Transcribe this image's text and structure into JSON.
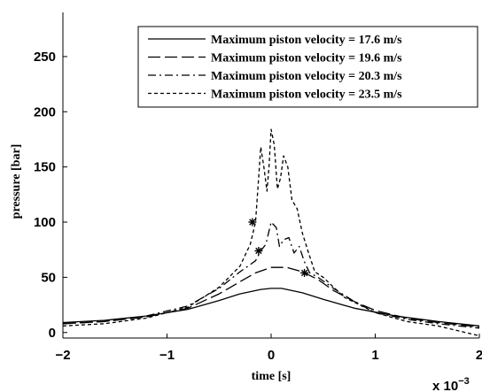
{
  "chart_data": {
    "type": "line",
    "xlabel": "time [s]",
    "ylabel": "pressure [bar]",
    "x_multiplier_label": "x 10",
    "x_multiplier_exponent": "−3",
    "xlim": [
      -2,
      2
    ],
    "ylim": [
      -5,
      290
    ],
    "xticks": [
      -2,
      -1,
      0,
      1,
      2
    ],
    "yticks": [
      0,
      50,
      100,
      150,
      200,
      250
    ],
    "grid": false,
    "legend_position": "top-right",
    "series": [
      {
        "name": "Maximum piston velocity = 17.6 m/s",
        "dash": "solid",
        "points": [
          [
            -2.0,
            9
          ],
          [
            -1.6,
            11
          ],
          [
            -1.2,
            15
          ],
          [
            -0.8,
            21
          ],
          [
            -0.5,
            29
          ],
          [
            -0.3,
            35
          ],
          [
            -0.1,
            39
          ],
          [
            0.0,
            40
          ],
          [
            0.1,
            40
          ],
          [
            0.3,
            36
          ],
          [
            0.5,
            30
          ],
          [
            0.8,
            22
          ],
          [
            1.2,
            15
          ],
          [
            1.6,
            10
          ],
          [
            2.0,
            6
          ]
        ]
      },
      {
        "name": "Maximum piston velocity = 19.6 m/s",
        "dash": "long-dash",
        "points": [
          [
            -2.0,
            8
          ],
          [
            -1.6,
            10
          ],
          [
            -1.2,
            14
          ],
          [
            -0.8,
            22
          ],
          [
            -0.5,
            35
          ],
          [
            -0.3,
            46
          ],
          [
            -0.15,
            54
          ],
          [
            0.0,
            59
          ],
          [
            0.15,
            59
          ],
          [
            0.3,
            55
          ],
          [
            0.45,
            48
          ],
          [
            0.6,
            38
          ],
          [
            0.8,
            28
          ],
          [
            1.0,
            20
          ],
          [
            1.3,
            13
          ],
          [
            1.6,
            9
          ],
          [
            2.0,
            5
          ]
        ]
      },
      {
        "name": "Maximum piston velocity = 20.3 m/s",
        "dash": "dash-dot",
        "points": [
          [
            -2.0,
            8
          ],
          [
            -1.6,
            10
          ],
          [
            -1.2,
            15
          ],
          [
            -0.8,
            24
          ],
          [
            -0.5,
            40
          ],
          [
            -0.3,
            55
          ],
          [
            -0.15,
            65
          ],
          [
            -0.1,
            74
          ],
          [
            -0.05,
            80
          ],
          [
            0.0,
            100
          ],
          [
            0.05,
            95
          ],
          [
            0.08,
            78
          ],
          [
            0.12,
            84
          ],
          [
            0.17,
            86
          ],
          [
            0.22,
            72
          ],
          [
            0.27,
            78
          ],
          [
            0.32,
            64
          ],
          [
            0.37,
            54
          ],
          [
            0.45,
            50
          ],
          [
            0.6,
            40
          ],
          [
            0.8,
            28
          ],
          [
            1.0,
            18
          ],
          [
            1.3,
            12
          ],
          [
            1.6,
            8
          ],
          [
            2.0,
            4
          ]
        ]
      },
      {
        "name": "Maximum piston velocity = 23.5 m/s",
        "dash": "short-dash",
        "points": [
          [
            -2.0,
            6
          ],
          [
            -1.6,
            8
          ],
          [
            -1.2,
            13
          ],
          [
            -0.8,
            23
          ],
          [
            -0.5,
            41
          ],
          [
            -0.3,
            60
          ],
          [
            -0.2,
            80
          ],
          [
            -0.15,
            100
          ],
          [
            -0.12,
            140
          ],
          [
            -0.1,
            168
          ],
          [
            -0.07,
            150
          ],
          [
            -0.04,
            128
          ],
          [
            -0.02,
            150
          ],
          [
            0.0,
            184
          ],
          [
            0.03,
            170
          ],
          [
            0.06,
            130
          ],
          [
            0.09,
            140
          ],
          [
            0.12,
            160
          ],
          [
            0.16,
            150
          ],
          [
            0.2,
            120
          ],
          [
            0.25,
            112
          ],
          [
            0.3,
            90
          ],
          [
            0.35,
            75
          ],
          [
            0.42,
            55
          ],
          [
            0.5,
            50
          ],
          [
            0.7,
            32
          ],
          [
            1.0,
            18
          ],
          [
            1.3,
            10
          ],
          [
            1.6,
            6
          ],
          [
            2.0,
            -3
          ]
        ]
      }
    ],
    "markers": [
      {
        "x": -0.18,
        "y": 100,
        "symbol": "*"
      },
      {
        "x": -0.12,
        "y": 74,
        "symbol": "*"
      },
      {
        "x": 0.32,
        "y": 54,
        "symbol": "*"
      }
    ]
  }
}
